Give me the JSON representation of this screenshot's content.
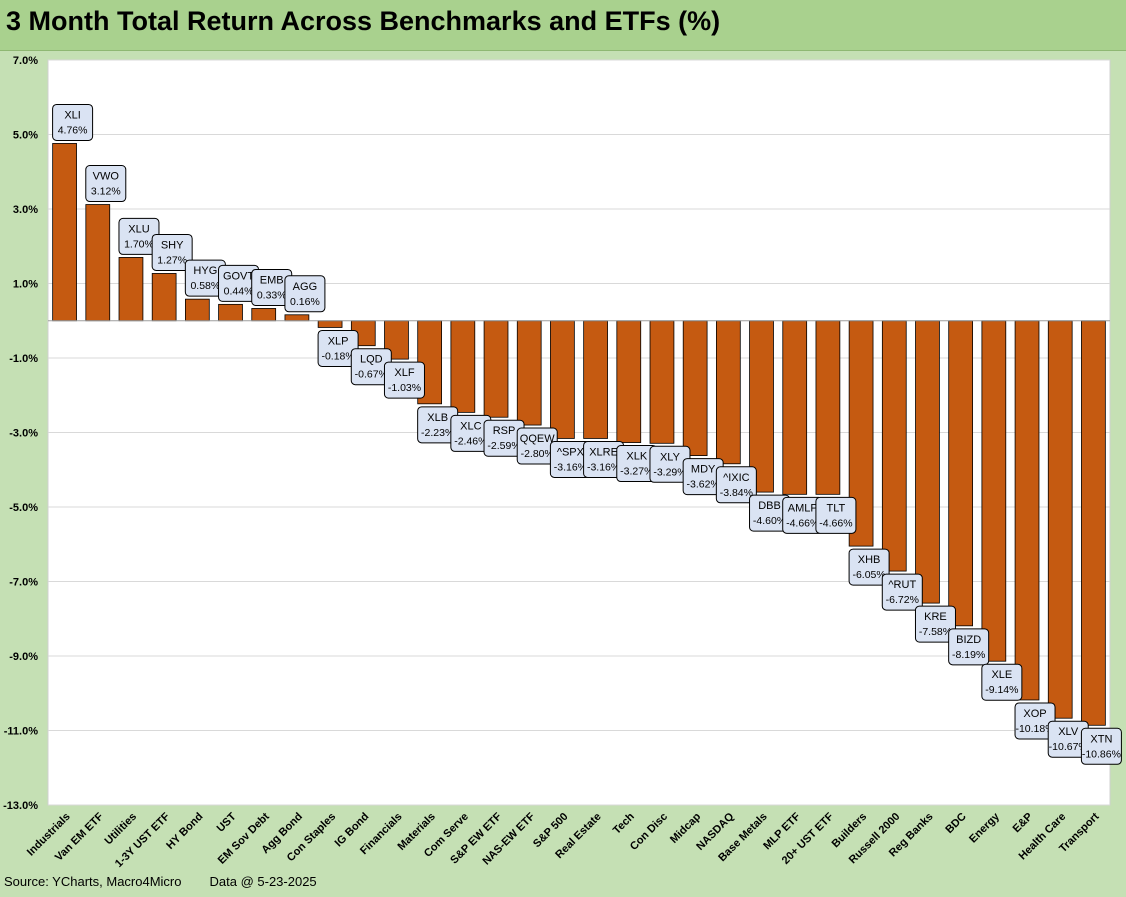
{
  "chart_data": {
    "type": "bar",
    "title": "3 Month Total Return Across Benchmarks and ETFs (%)",
    "xlabel": "",
    "ylabel": "",
    "ylim": [
      -13.0,
      7.0
    ],
    "yticks": [
      "7.0%",
      "5.0%",
      "3.0%",
      "1.0%",
      "-1.0%",
      "-3.0%",
      "-5.0%",
      "-7.0%",
      "-9.0%",
      "-11.0%",
      "-13.0%"
    ],
    "ytick_values": [
      7,
      5,
      3,
      1,
      -1,
      -3,
      -5,
      -7,
      -9,
      -11,
      -13
    ],
    "grid": true,
    "legend": "none",
    "bar_color": "#c55a11",
    "categories": [
      "Industrials",
      "Van EM ETF",
      "Utilities",
      "1-3Y UST ETF",
      "HY Bond",
      "UST",
      "EM Sov Debt",
      "Agg Bond",
      "Con Staples",
      "IG Bond",
      "Financials",
      "Materials",
      "Com Serve",
      "S&P EW ETF",
      "NAS-EW ETF",
      "S&P 500",
      "Real Estate",
      "Tech",
      "Con Disc",
      "Midcap",
      "NASDAQ",
      "Base Metals",
      "MLP ETF",
      "20+ UST ETF",
      "Builders",
      "Russell 2000",
      "Reg Banks",
      "BDC",
      "Energy",
      "E&P",
      "Health Care",
      "Transport"
    ],
    "tickers": [
      "XLI",
      "VWO",
      "XLU",
      "SHY",
      "HYG",
      "GOVT",
      "EMB",
      "AGG",
      "XLP",
      "LQD",
      "XLF",
      "XLB",
      "XLC",
      "RSP",
      "QQEW",
      "^SPX",
      "XLRE",
      "XLK",
      "XLY",
      "MDY",
      "^IXIC",
      "DBB",
      "AMLP",
      "TLT",
      "XHB",
      "^RUT",
      "KRE",
      "BIZD",
      "XLE",
      "XOP",
      "XLV",
      "XTN"
    ],
    "value_labels": [
      "4.76%",
      "3.12%",
      "1.70%",
      "1.27%",
      "0.58%",
      "0.44%",
      "0.33%",
      "0.16%",
      "-0.18%",
      "-0.67%",
      "-1.03%",
      "-2.23%",
      "-2.46%",
      "-2.59%",
      "-2.80%",
      "-3.16%",
      "-3.16%",
      "-3.27%",
      "-3.29%",
      "-3.62%",
      "-3.84%",
      "-4.60%",
      "-4.66%",
      "-4.66%",
      "-6.05%",
      "-6.72%",
      "-7.58%",
      "-8.19%",
      "-9.14%",
      "-10.18%",
      "-10.67%",
      "-10.86%"
    ],
    "values": [
      4.76,
      3.12,
      1.7,
      1.27,
      0.58,
      0.44,
      0.33,
      0.16,
      -0.18,
      -0.67,
      -1.03,
      -2.23,
      -2.46,
      -2.59,
      -2.8,
      -3.16,
      -3.16,
      -3.27,
      -3.29,
      -3.62,
      -3.84,
      -4.6,
      -4.66,
      -4.66,
      -6.05,
      -6.72,
      -7.58,
      -8.19,
      -9.14,
      -10.18,
      -10.67,
      -10.86
    ]
  },
  "footer": {
    "source": "Source: YCharts, Macro4Micro",
    "date": "Data @ 5-23-2025"
  }
}
